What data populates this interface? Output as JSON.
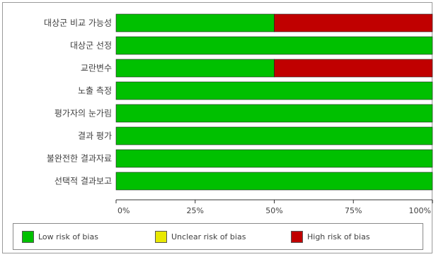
{
  "chart_data": {
    "type": "bar",
    "orientation": "horizontal",
    "stacked": true,
    "percent": true,
    "categories": [
      "대상군 비교 가능성",
      "대상군 선정",
      "교란변수",
      "노출 측정",
      "평가자의 눈가림",
      "결과 평가",
      "불완전한 결과자료",
      "선택적 결과보고"
    ],
    "series": [
      {
        "name": "Low risk of bias",
        "color": "#00c000",
        "values": [
          50,
          100,
          50,
          100,
          100,
          100,
          100,
          100
        ]
      },
      {
        "name": "Unclear risk of bias",
        "color": "#e8e800",
        "values": [
          0,
          0,
          0,
          0,
          0,
          0,
          0,
          0
        ]
      },
      {
        "name": "High risk of bias",
        "color": "#c00000",
        "values": [
          50,
          0,
          50,
          0,
          0,
          0,
          0,
          0
        ]
      }
    ],
    "xticks": [
      "0%",
      "25%",
      "50%",
      "75%",
      "100%"
    ],
    "xlim": [
      0,
      100
    ],
    "legend_position": "bottom",
    "grid": false
  }
}
